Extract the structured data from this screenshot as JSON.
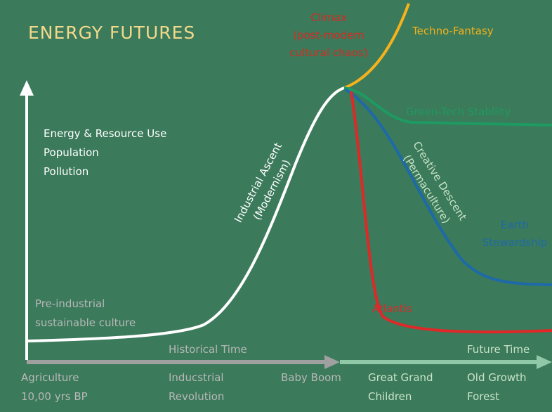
{
  "title": "ENERGY FUTURES",
  "climax": [
    "Climax",
    "(post-modern",
    "cultural chaos)"
  ],
  "techno_fantasy": "Techno-Fantasy",
  "green_tech": "Green-Tech Stablilty",
  "y_axis_labels": [
    "Energy & Resource Use",
    "Population",
    "Pollution"
  ],
  "industrial_ascent": [
    "Industrial Ascent",
    "(Modernism)"
  ],
  "creative_descent": [
    "Creative Descent",
    "(Permaculture)"
  ],
  "earth_stewardship": [
    "Earth",
    "Stewardship"
  ],
  "pre_industrial": [
    "Pre-industrial",
    "sustainable culture"
  ],
  "atlantis": "Atlantis",
  "historical_time": "Historical Time",
  "future_time": "Future Time",
  "x_labels": [
    [
      "Agriculture",
      "10,00 yrs BP"
    ],
    [
      "Inducstrial",
      "Revolution"
    ],
    [
      "Baby Boom"
    ],
    [
      "Great Grand",
      "Children"
    ],
    [
      "Old Growth",
      "Forest"
    ]
  ]
}
